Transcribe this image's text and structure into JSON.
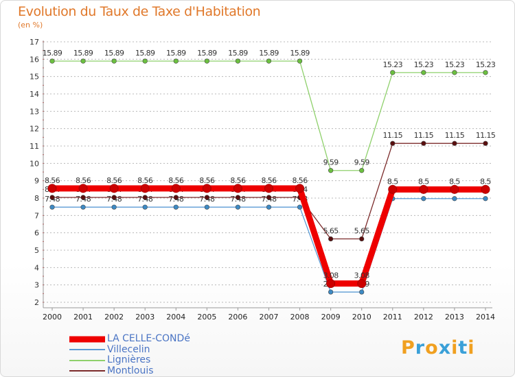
{
  "title": "Evolution du Taux de Taxe d'Habitation",
  "subtitle": "(en %)",
  "logo": {
    "text": "Proxiti",
    "colors": [
      "#f0a020",
      "#3aa0d8",
      "#f0a020",
      "#3aa0d8",
      "#f0a020",
      "#3aa0d8",
      "#f0a020"
    ]
  },
  "chart_data": {
    "type": "line",
    "title": "Evolution du Taux de Taxe d'Habitation",
    "ylabel": "(en %)",
    "xlabel": "",
    "ylim": [
      2,
      17
    ],
    "yticks": [
      "2",
      "3",
      "4",
      "5",
      "6",
      "7",
      "8",
      "9",
      "10",
      "11",
      "12",
      "13",
      "14",
      "15",
      "16",
      "17"
    ],
    "x": [
      "2000",
      "2001",
      "2002",
      "2003",
      "2004",
      "2005",
      "2006",
      "2007",
      "2008",
      "2009",
      "2010",
      "2011",
      "2012",
      "2013",
      "2014"
    ],
    "series": [
      {
        "name": "Villecelin",
        "color": "#5b9bd5",
        "point_color": "#3d8ac4",
        "values": [
          7.48,
          7.48,
          7.48,
          7.48,
          7.48,
          7.48,
          7.48,
          7.48,
          7.48,
          2.59,
          2.59,
          7.97,
          7.97,
          7.97,
          7.97
        ],
        "labels": [
          "7.48",
          "7.48",
          "7.48",
          "7.48",
          "7.48",
          "7.48",
          "7.48",
          "7.48",
          "7.48",
          "2.59",
          "2.59",
          null,
          null,
          null,
          null
        ],
        "label_pos": "above"
      },
      {
        "name": "Lignières",
        "color": "#8ed06b",
        "point_color": "#6cc040",
        "values": [
          15.89,
          15.89,
          15.89,
          15.89,
          15.89,
          15.89,
          15.89,
          15.89,
          15.89,
          9.59,
          9.59,
          15.23,
          15.23,
          15.23,
          15.23
        ],
        "labels": [
          "15.89",
          "15.89",
          "15.89",
          "15.89",
          "15.89",
          "15.89",
          "15.89",
          "15.89",
          "15.89",
          "9.59",
          "9.59",
          "15.23",
          "15.23",
          "15.23",
          "15.23"
        ],
        "label_pos": "above"
      },
      {
        "name": "Montlouis",
        "color": "#7b2a2a",
        "point_color": "#5a0f0f",
        "values": [
          8.04,
          8.04,
          8.04,
          8.04,
          8.04,
          8.04,
          8.04,
          8.04,
          8.04,
          5.65,
          5.65,
          11.15,
          11.15,
          11.15,
          11.15
        ],
        "labels": [
          "8.04",
          "8.04",
          "8.04",
          "8.04",
          "8.04",
          "8.04",
          "8.04",
          "8.04",
          "8.04",
          "5.65",
          "5.65",
          "11.15",
          "11.15",
          "11.15",
          "11.15"
        ],
        "label_pos": "above"
      },
      {
        "name": "LA CELLE-CONDé",
        "color": "#ee0000",
        "point_color": "#cc0000",
        "thick": true,
        "values": [
          8.56,
          8.56,
          8.56,
          8.56,
          8.56,
          8.56,
          8.56,
          8.56,
          8.56,
          3.08,
          3.08,
          8.5,
          8.5,
          8.5,
          8.5
        ],
        "labels": [
          "8.56",
          "8.56",
          "8.56",
          "8.56",
          "8.56",
          "8.56",
          "8.56",
          "8.56",
          "8.56",
          "3.08",
          "3.08",
          "8.5",
          "8.5",
          "8.5",
          "8.5"
        ],
        "label_pos": "above"
      }
    ],
    "legend": [
      "LA CELLE-CONDé",
      "Villecelin",
      "Lignières",
      "Montlouis"
    ]
  }
}
